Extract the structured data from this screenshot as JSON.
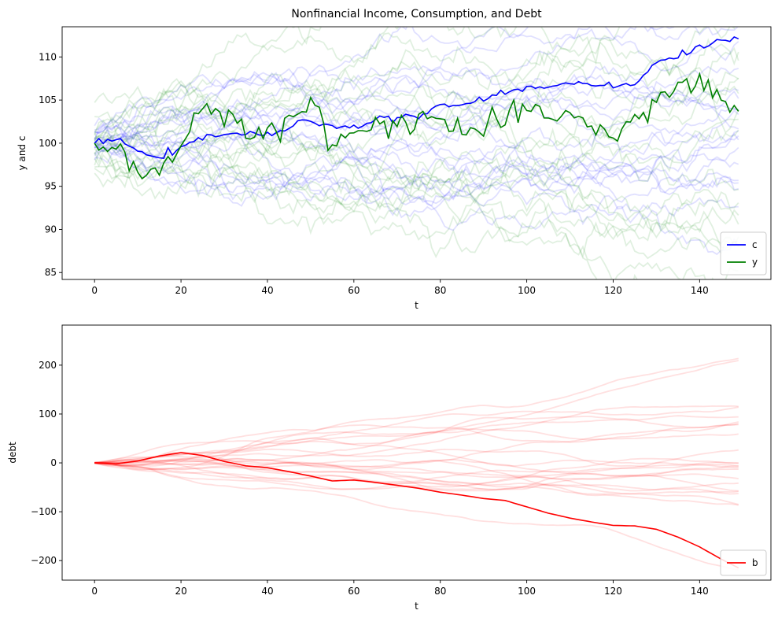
{
  "colors": {
    "c": "#0000ff",
    "y": "#008000",
    "b": "#ff0000",
    "c_faint": "#0000ff",
    "y_faint": "#008000",
    "b_faint": "#ff0000"
  },
  "chart_data": [
    {
      "type": "line",
      "title": "Nonfinancial Income, Consumption, and Debt",
      "xlabel": "t",
      "ylabel": "y and c",
      "xlim": [
        -7.5,
        156.5
      ],
      "ylim": [
        84.2,
        113.5
      ],
      "xticks": [
        0,
        20,
        40,
        60,
        80,
        100,
        120,
        140
      ],
      "yticks": [
        85,
        90,
        95,
        100,
        105,
        110
      ],
      "grid": false,
      "legend_position": "bottom-right",
      "legend": [
        {
          "label": "c",
          "color": "#0000ff"
        },
        {
          "label": "y",
          "color": "#008000"
        }
      ],
      "series": [
        {
          "name": "c",
          "color": "#0000ff",
          "x": [
            0,
            5,
            10,
            15,
            20,
            25,
            30,
            35,
            40,
            45,
            50,
            55,
            60,
            65,
            70,
            75,
            80,
            85,
            90,
            95,
            100,
            105,
            110,
            115,
            120,
            125,
            130,
            135,
            140,
            145,
            149
          ],
          "values": [
            100.0,
            100.4,
            99.1,
            98.6,
            99.2,
            100.6,
            101.2,
            101.0,
            100.9,
            101.8,
            102.6,
            102.1,
            101.9,
            102.6,
            103.0,
            103.2,
            104.1,
            104.6,
            105.0,
            105.9,
            106.4,
            106.6,
            107.0,
            107.1,
            106.5,
            106.8,
            109.3,
            110.2,
            111.2,
            111.8,
            112.1
          ]
        },
        {
          "name": "y",
          "color": "#008000",
          "x": [
            0,
            5,
            10,
            15,
            20,
            25,
            30,
            35,
            40,
            45,
            50,
            55,
            60,
            65,
            70,
            75,
            80,
            85,
            90,
            95,
            100,
            105,
            110,
            115,
            120,
            125,
            130,
            135,
            140,
            145,
            149
          ],
          "values": [
            100.0,
            99.3,
            96.9,
            97.3,
            99.6,
            103.0,
            103.8,
            101.6,
            101.6,
            102.5,
            104.5,
            100.2,
            100.7,
            102.3,
            102.3,
            103.4,
            102.5,
            101.4,
            101.6,
            102.5,
            103.3,
            103.1,
            103.6,
            102.6,
            100.1,
            102.6,
            105.5,
            106.4,
            107.0,
            105.2,
            103.7
          ]
        }
      ],
      "background_paths": {
        "c_count": 20,
        "y_count": 20,
        "opacity": 0.12
      }
    },
    {
      "type": "line",
      "title": "",
      "xlabel": "t",
      "ylabel": "debt",
      "xlim": [
        -7.5,
        156.5
      ],
      "ylim": [
        -240,
        282
      ],
      "xticks": [
        0,
        20,
        40,
        60,
        80,
        100,
        120,
        140
      ],
      "yticks": [
        -200,
        -100,
        0,
        100,
        200
      ],
      "grid": false,
      "legend_position": "bottom-right",
      "legend": [
        {
          "label": "b",
          "color": "#ff0000"
        }
      ],
      "series": [
        {
          "name": "b",
          "color": "#ff0000",
          "x": [
            0,
            5,
            10,
            15,
            20,
            25,
            30,
            35,
            40,
            45,
            50,
            55,
            60,
            65,
            70,
            75,
            80,
            85,
            90,
            95,
            100,
            105,
            110,
            115,
            120,
            125,
            130,
            135,
            140,
            145,
            149
          ],
          "values": [
            0,
            -2,
            4,
            14,
            21,
            15,
            3,
            -6,
            -10,
            -18,
            -27,
            -37,
            -35,
            -40,
            -46,
            -52,
            -60,
            -66,
            -73,
            -77,
            -90,
            -103,
            -113,
            -121,
            -128,
            -129,
            -136,
            -152,
            -172,
            -197,
            -215
          ]
        }
      ],
      "background_paths": {
        "b_count": 24,
        "opacity": 0.12
      }
    }
  ]
}
